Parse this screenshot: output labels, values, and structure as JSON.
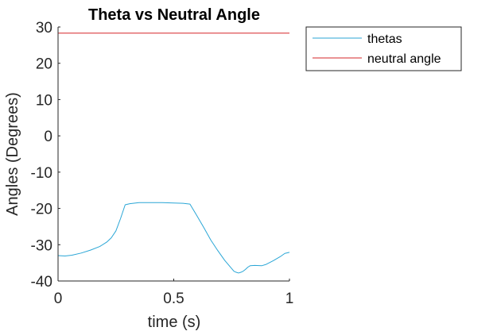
{
  "chart_data": {
    "type": "line",
    "title": "Theta vs Neutral Angle",
    "xlabel": "time (s)",
    "ylabel": "Angles (Degrees)",
    "xlim": [
      0,
      1
    ],
    "ylim": [
      -40,
      30
    ],
    "xticks": [
      0,
      0.5,
      1
    ],
    "xtick_labels": [
      "0",
      "0.5",
      "1"
    ],
    "yticks": [
      30,
      20,
      10,
      0,
      -10,
      -20,
      -30,
      -40
    ],
    "ytick_labels": [
      "30",
      "20",
      "10",
      "0",
      "-10",
      "-20",
      "-30",
      "-40"
    ],
    "grid": false,
    "legend_position": "outside-top-right",
    "series": [
      {
        "name": "thetas",
        "color": "#2aa6d6",
        "x": [
          0,
          0.03,
          0.06,
          0.1,
          0.14,
          0.18,
          0.21,
          0.23,
          0.25,
          0.27,
          0.29,
          0.31,
          0.35,
          0.4,
          0.45,
          0.5,
          0.54,
          0.57,
          0.6,
          0.63,
          0.66,
          0.69,
          0.72,
          0.74,
          0.76,
          0.77,
          0.78,
          0.79,
          0.8,
          0.81,
          0.82,
          0.83,
          0.85,
          0.88,
          0.9,
          0.93,
          0.96,
          0.98,
          1.0
        ],
        "y": [
          -33,
          -33.1,
          -32.9,
          -32.3,
          -31.5,
          -30.5,
          -29.3,
          -28.1,
          -26.2,
          -22.8,
          -19.0,
          -18.7,
          -18.4,
          -18.4,
          -18.4,
          -18.5,
          -18.6,
          -18.8,
          -22.0,
          -25.3,
          -28.7,
          -31.6,
          -34.3,
          -35.8,
          -37.3,
          -37.6,
          -37.8,
          -37.6,
          -37.3,
          -36.8,
          -36.2,
          -35.8,
          -35.7,
          -35.8,
          -35.4,
          -34.4,
          -33.3,
          -32.4,
          -32.1
        ]
      },
      {
        "name": "neutral angle",
        "color": "#d62728",
        "x": [
          0,
          1
        ],
        "y": [
          28.3,
          28.3
        ]
      }
    ]
  }
}
